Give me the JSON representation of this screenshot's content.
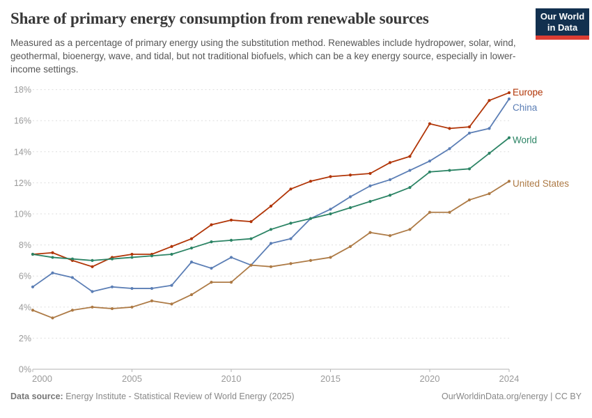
{
  "header": {
    "title": "Share of primary energy consumption from renewable sources",
    "subtitle": "Measured as a percentage of primary energy using the substitution method. Renewables include hydropower, solar, wind, geothermal, bioenergy, wave, and tidal, but not traditional biofuels, which can be a key energy source, especially in lower-income settings.",
    "logo": {
      "line1": "Our World",
      "line2": "in Data"
    }
  },
  "chart_data": {
    "type": "line",
    "title": "Share of primary energy consumption from renewable sources",
    "xlabel": "",
    "ylabel": "",
    "x": [
      2000,
      2001,
      2002,
      2003,
      2004,
      2005,
      2006,
      2007,
      2008,
      2009,
      2010,
      2011,
      2012,
      2013,
      2014,
      2015,
      2016,
      2017,
      2018,
      2019,
      2020,
      2021,
      2022,
      2023,
      2024
    ],
    "series": [
      {
        "name": "Europe",
        "color": "#B13507",
        "values": [
          7.4,
          7.5,
          7.0,
          6.6,
          7.2,
          7.4,
          7.4,
          7.9,
          8.4,
          9.3,
          9.6,
          9.5,
          10.5,
          11.6,
          12.1,
          12.4,
          12.5,
          12.6,
          13.3,
          13.7,
          15.8,
          15.5,
          15.6,
          17.3,
          17.8
        ]
      },
      {
        "name": "China",
        "color": "#5B7EB5",
        "values": [
          5.3,
          6.2,
          5.9,
          5.0,
          5.3,
          5.2,
          5.2,
          5.4,
          6.9,
          6.5,
          7.2,
          6.7,
          8.1,
          8.4,
          9.7,
          10.3,
          11.1,
          11.8,
          12.2,
          12.8,
          13.4,
          14.2,
          15.2,
          15.5,
          17.4
        ]
      },
      {
        "name": "World",
        "color": "#2C8465",
        "values": [
          7.4,
          7.2,
          7.1,
          7.0,
          7.1,
          7.2,
          7.3,
          7.4,
          7.8,
          8.2,
          8.3,
          8.4,
          9.0,
          9.4,
          9.7,
          10.0,
          10.4,
          10.8,
          11.2,
          11.7,
          12.7,
          12.8,
          12.9,
          13.9,
          14.9
        ]
      },
      {
        "name": "United States",
        "color": "#AD7A45",
        "values": [
          3.8,
          3.3,
          3.8,
          4.0,
          3.9,
          4.0,
          4.4,
          4.2,
          4.8,
          5.6,
          5.6,
          6.7,
          6.6,
          6.8,
          7.0,
          7.2,
          7.9,
          8.8,
          8.6,
          9.0,
          10.1,
          10.1,
          10.9,
          11.3,
          12.1
        ]
      }
    ],
    "ylim": [
      0,
      18
    ],
    "ytick_step": 2,
    "ytick_suffix": "%",
    "xticks": [
      2000,
      2005,
      2010,
      2015,
      2020,
      2024
    ],
    "grid": "horizontal-dashed",
    "legend": "end-of-line-labels",
    "axis_color": "#B3B3B3",
    "grid_color": "#DEDEDE",
    "tick_label_color": "#9A9A9A"
  },
  "footer": {
    "datasource_label": "Data source:",
    "datasource": " Energy Institute - Statistical Review of World Energy (2025)",
    "credit": "OurWorldinData.org/energy | CC BY"
  }
}
